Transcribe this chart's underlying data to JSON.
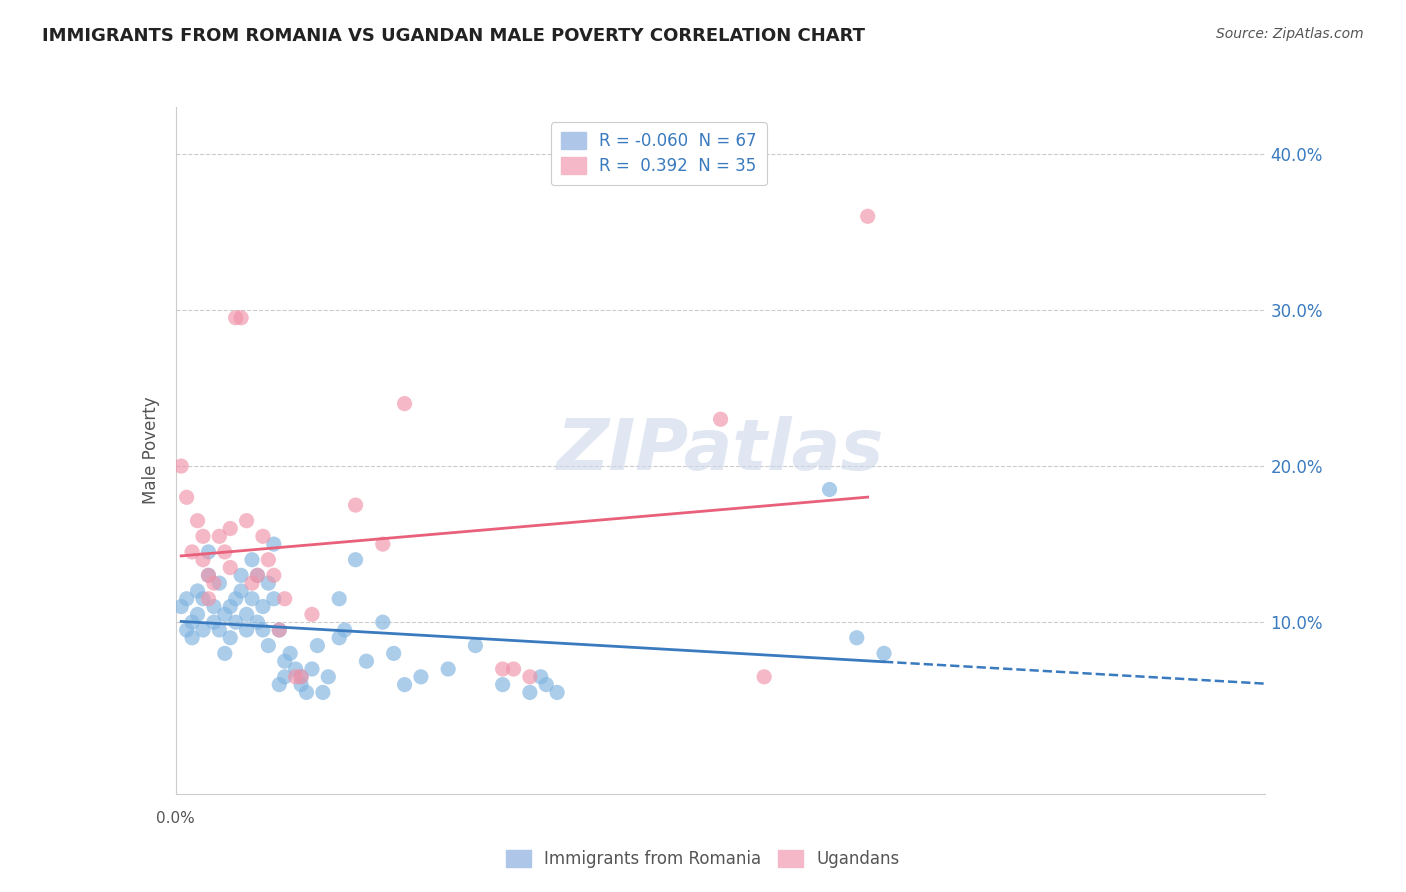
{
  "title": "IMMIGRANTS FROM ROMANIA VS UGANDAN MALE POVERTY CORRELATION CHART",
  "source": "Source: ZipAtlas.com",
  "ylabel": "Male Poverty",
  "y_tick_labels": [
    "10.0%",
    "20.0%",
    "30.0%",
    "40.0%"
  ],
  "y_tick_values": [
    0.1,
    0.2,
    0.3,
    0.4
  ],
  "x_range": [
    0.0,
    0.2
  ],
  "y_range": [
    -0.01,
    0.43
  ],
  "watermark": "ZIPatlas",
  "blue_color": "#7fb3e0",
  "pink_color": "#f093a8",
  "blue_line_color": "#3a7abf",
  "pink_line_color": "#e8607a",
  "legend_blue_face": "#aec6e8",
  "legend_pink_face": "#f4b8c8",
  "legend_blue_label": "R = -0.060  N = 67",
  "legend_pink_label": "R =  0.392  N = 35",
  "bottom_legend_blue": "Immigrants from Romania",
  "bottom_legend_pink": "Ugandans",
  "romania_points": [
    [
      0.001,
      0.11
    ],
    [
      0.002,
      0.115
    ],
    [
      0.002,
      0.095
    ],
    [
      0.003,
      0.1
    ],
    [
      0.003,
      0.09
    ],
    [
      0.004,
      0.12
    ],
    [
      0.004,
      0.105
    ],
    [
      0.005,
      0.095
    ],
    [
      0.005,
      0.115
    ],
    [
      0.006,
      0.13
    ],
    [
      0.006,
      0.145
    ],
    [
      0.007,
      0.1
    ],
    [
      0.007,
      0.11
    ],
    [
      0.008,
      0.125
    ],
    [
      0.008,
      0.095
    ],
    [
      0.009,
      0.08
    ],
    [
      0.009,
      0.105
    ],
    [
      0.01,
      0.11
    ],
    [
      0.01,
      0.09
    ],
    [
      0.011,
      0.115
    ],
    [
      0.011,
      0.1
    ],
    [
      0.012,
      0.13
    ],
    [
      0.012,
      0.12
    ],
    [
      0.013,
      0.105
    ],
    [
      0.013,
      0.095
    ],
    [
      0.014,
      0.115
    ],
    [
      0.014,
      0.14
    ],
    [
      0.015,
      0.1
    ],
    [
      0.015,
      0.13
    ],
    [
      0.016,
      0.11
    ],
    [
      0.016,
      0.095
    ],
    [
      0.017,
      0.125
    ],
    [
      0.017,
      0.085
    ],
    [
      0.018,
      0.15
    ],
    [
      0.018,
      0.115
    ],
    [
      0.019,
      0.095
    ],
    [
      0.019,
      0.06
    ],
    [
      0.02,
      0.075
    ],
    [
      0.02,
      0.065
    ],
    [
      0.021,
      0.08
    ],
    [
      0.022,
      0.07
    ],
    [
      0.023,
      0.06
    ],
    [
      0.023,
      0.065
    ],
    [
      0.024,
      0.055
    ],
    [
      0.025,
      0.07
    ],
    [
      0.026,
      0.085
    ],
    [
      0.027,
      0.055
    ],
    [
      0.028,
      0.065
    ],
    [
      0.03,
      0.115
    ],
    [
      0.03,
      0.09
    ],
    [
      0.031,
      0.095
    ],
    [
      0.033,
      0.14
    ],
    [
      0.035,
      0.075
    ],
    [
      0.038,
      0.1
    ],
    [
      0.04,
      0.08
    ],
    [
      0.042,
      0.06
    ],
    [
      0.045,
      0.065
    ],
    [
      0.05,
      0.07
    ],
    [
      0.055,
      0.085
    ],
    [
      0.06,
      0.06
    ],
    [
      0.065,
      0.055
    ],
    [
      0.067,
      0.065
    ],
    [
      0.068,
      0.06
    ],
    [
      0.07,
      0.055
    ],
    [
      0.12,
      0.185
    ],
    [
      0.125,
      0.09
    ],
    [
      0.13,
      0.08
    ]
  ],
  "ugandan_points": [
    [
      0.001,
      0.2
    ],
    [
      0.002,
      0.18
    ],
    [
      0.003,
      0.145
    ],
    [
      0.004,
      0.165
    ],
    [
      0.005,
      0.155
    ],
    [
      0.005,
      0.14
    ],
    [
      0.006,
      0.13
    ],
    [
      0.006,
      0.115
    ],
    [
      0.007,
      0.125
    ],
    [
      0.008,
      0.155
    ],
    [
      0.009,
      0.145
    ],
    [
      0.01,
      0.16
    ],
    [
      0.01,
      0.135
    ],
    [
      0.011,
      0.295
    ],
    [
      0.012,
      0.295
    ],
    [
      0.013,
      0.165
    ],
    [
      0.014,
      0.125
    ],
    [
      0.015,
      0.13
    ],
    [
      0.016,
      0.155
    ],
    [
      0.017,
      0.14
    ],
    [
      0.018,
      0.13
    ],
    [
      0.019,
      0.095
    ],
    [
      0.02,
      0.115
    ],
    [
      0.022,
      0.065
    ],
    [
      0.023,
      0.065
    ],
    [
      0.025,
      0.105
    ],
    [
      0.033,
      0.175
    ],
    [
      0.038,
      0.15
    ],
    [
      0.042,
      0.24
    ],
    [
      0.06,
      0.07
    ],
    [
      0.062,
      0.07
    ],
    [
      0.065,
      0.065
    ],
    [
      0.1,
      0.23
    ],
    [
      0.108,
      0.065
    ],
    [
      0.127,
      0.36
    ]
  ]
}
